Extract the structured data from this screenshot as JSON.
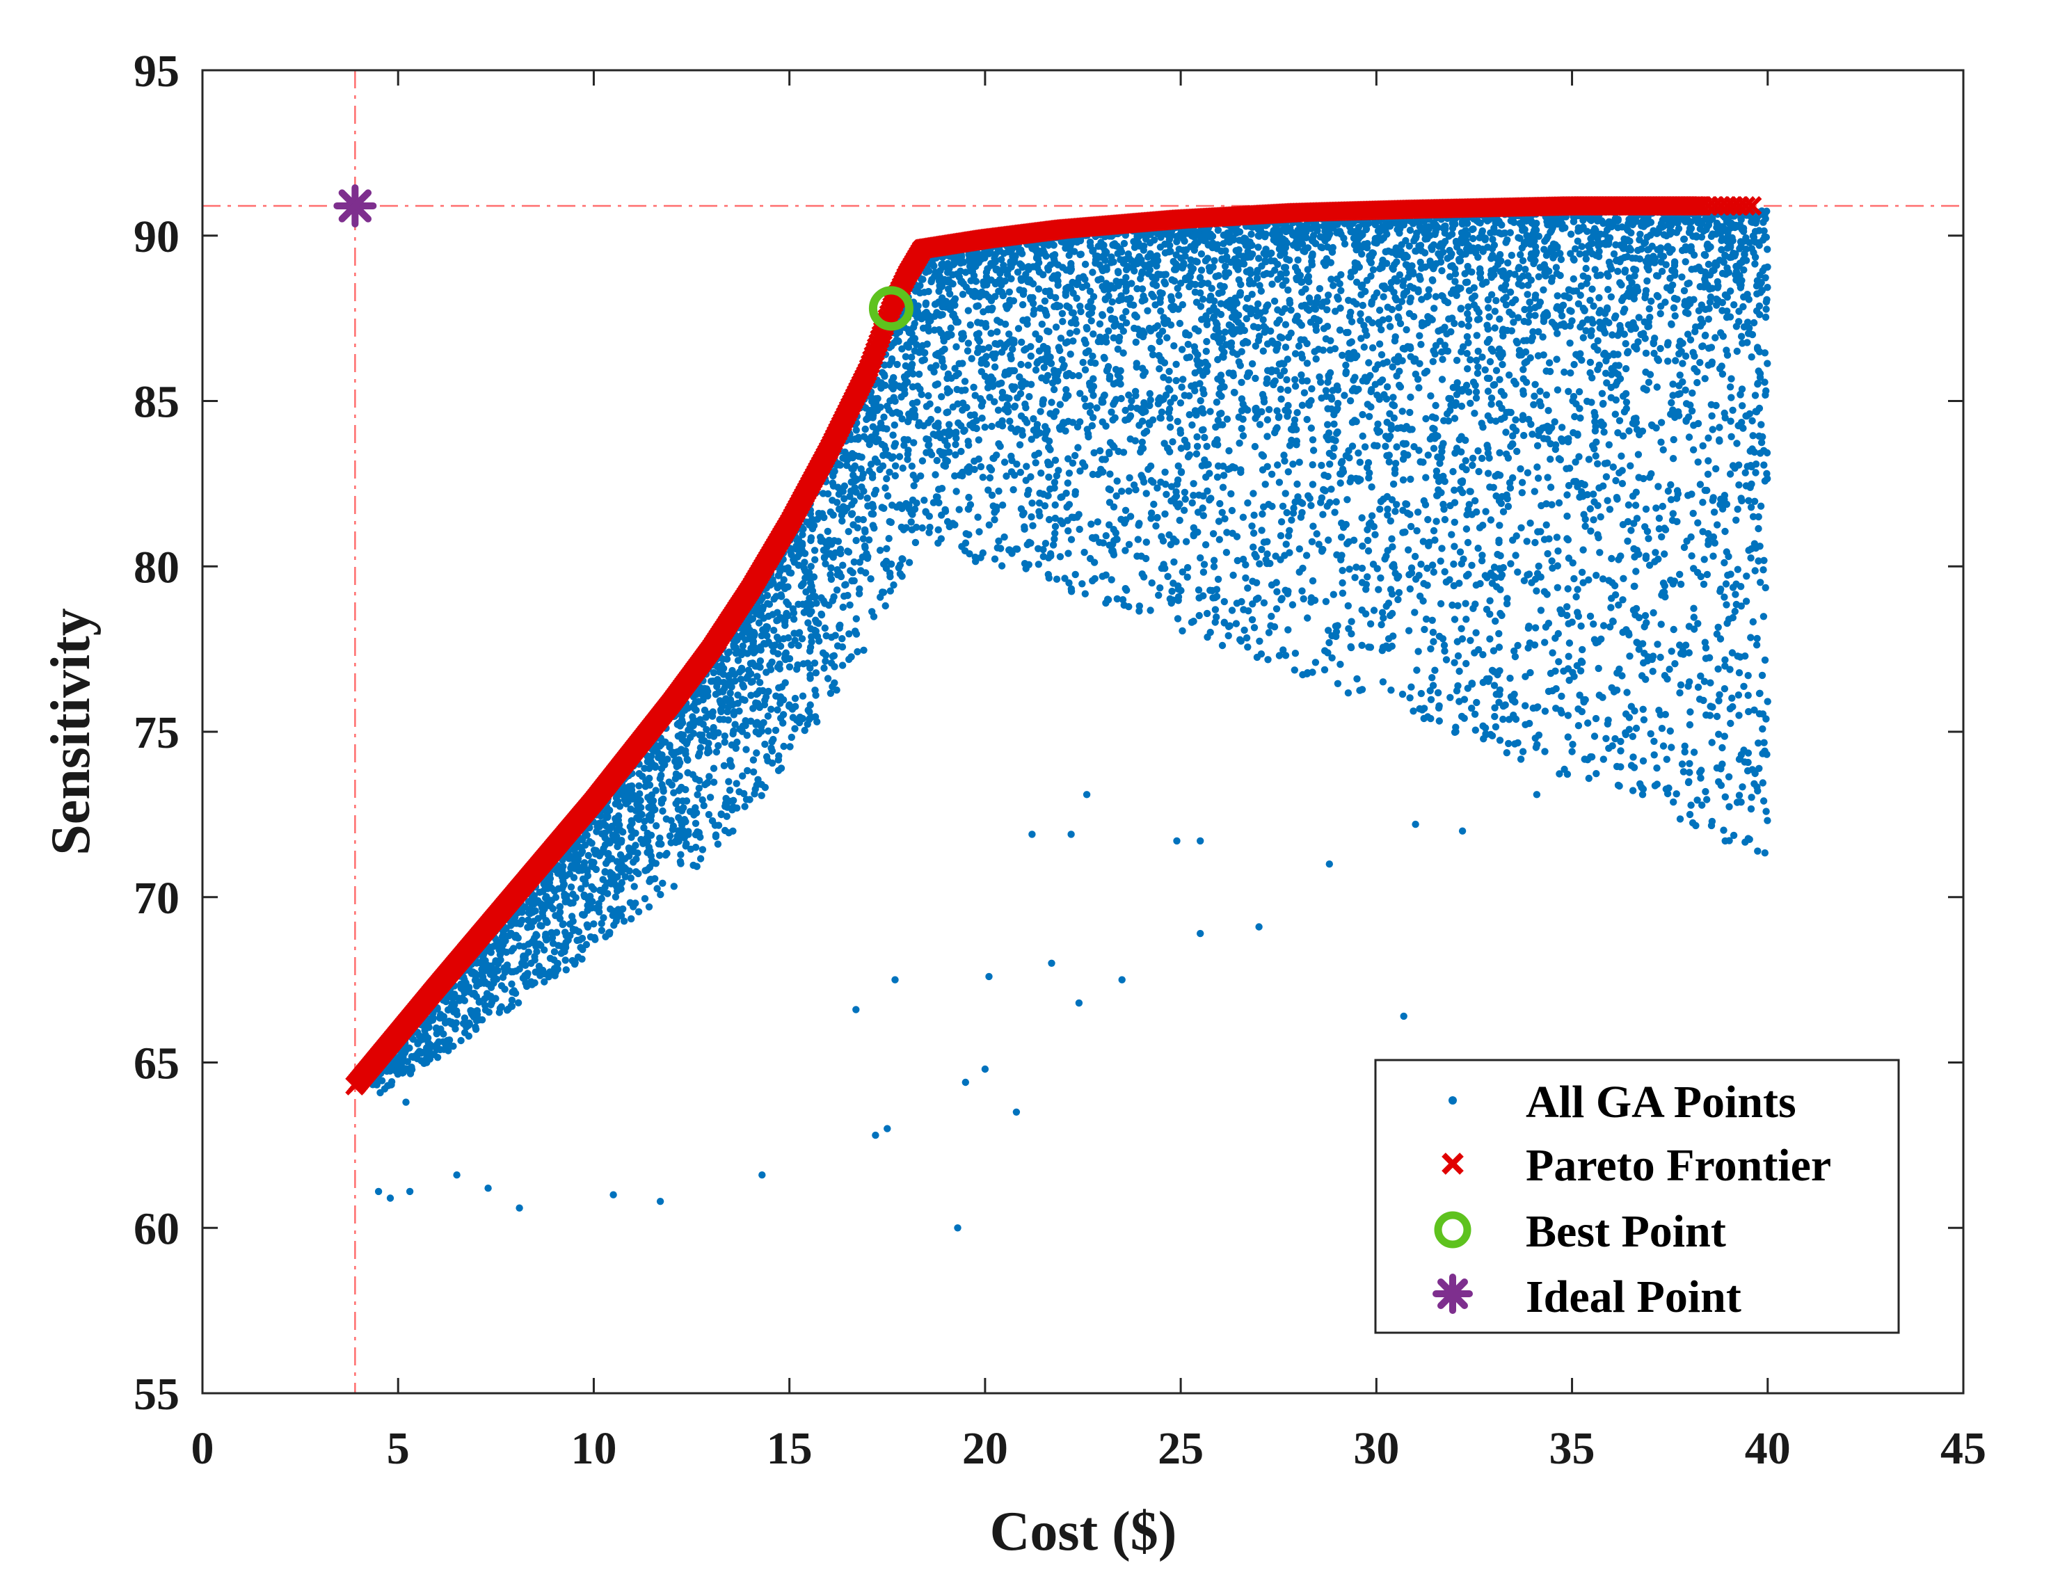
{
  "chart_data": {
    "type": "scatter",
    "title": "",
    "xlabel": "Cost ($)",
    "ylabel": "Sensitivity",
    "xlim": [
      0,
      45
    ],
    "ylim": [
      55,
      95
    ],
    "xticks": [
      0,
      5,
      10,
      15,
      20,
      25,
      30,
      35,
      40,
      45
    ],
    "yticks": [
      55,
      60,
      65,
      70,
      75,
      80,
      85,
      90,
      95
    ],
    "grid": false,
    "legend_position": "bottom-right",
    "colors": {
      "ga_points": "#0072BD",
      "pareto": "#E00000",
      "best": "#5EC21E",
      "ideal": "#7E2F8E",
      "reference_lines": "#FF6E6E"
    },
    "series": [
      {
        "name": "All GA Points",
        "marker": "dot",
        "description_sample": [
          [
            5.2,
            63.8
          ],
          [
            6.5,
            61.6
          ],
          [
            7.3,
            61.2
          ],
          [
            8.1,
            60.6
          ],
          [
            10.5,
            61.0
          ],
          [
            11.7,
            60.8
          ],
          [
            14.3,
            61.6
          ],
          [
            19.3,
            60.0
          ],
          [
            17.2,
            62.8
          ],
          [
            17.5,
            63.0
          ],
          [
            20.0,
            64.8
          ],
          [
            20.8,
            63.5
          ],
          [
            22.4,
            66.8
          ],
          [
            23.5,
            67.5
          ],
          [
            25.5,
            68.9
          ],
          [
            27.0,
            69.1
          ],
          [
            28.8,
            71.0
          ],
          [
            30.7,
            66.4
          ],
          [
            31.0,
            72.2
          ],
          [
            32.2,
            72.0
          ],
          [
            34.1,
            73.1
          ],
          [
            35.0,
            74.4
          ],
          [
            37.1,
            74.3
          ],
          [
            37.3,
            75.1
          ],
          [
            38.9,
            76.3
          ],
          [
            39.5,
            76.1
          ],
          [
            39.5,
            76.7
          ],
          [
            38.4,
            77.7
          ],
          [
            34.3,
            77.7
          ],
          [
            30.9,
            79.8
          ],
          [
            39.9,
            83.5
          ],
          [
            38.4,
            82.3
          ],
          [
            39.0,
            80.3
          ],
          [
            39.3,
            85.2
          ],
          [
            36.0,
            85.1
          ],
          [
            37.0,
            85.8
          ],
          [
            21.2,
            71.9
          ],
          [
            22.2,
            71.9
          ],
          [
            22.6,
            73.1
          ],
          [
            24.9,
            71.7
          ],
          [
            25.5,
            71.7
          ],
          [
            16.7,
            66.6
          ],
          [
            17.7,
            67.5
          ],
          [
            20.1,
            67.6
          ],
          [
            21.7,
            68.0
          ],
          [
            19.5,
            64.4
          ],
          [
            4.5,
            61.1
          ],
          [
            4.8,
            60.9
          ],
          [
            5.3,
            61.1
          ]
        ]
      },
      {
        "name": "Pareto Frontier",
        "marker": "x",
        "frontier": [
          [
            3.9,
            64.3
          ],
          [
            6.0,
            67.3
          ],
          [
            8.0,
            70.1
          ],
          [
            10.0,
            72.9
          ],
          [
            12.0,
            75.9
          ],
          [
            13.0,
            77.5
          ],
          [
            14.0,
            79.3
          ],
          [
            15.0,
            81.3
          ],
          [
            16.0,
            83.5
          ],
          [
            17.0,
            85.9
          ],
          [
            17.6,
            87.8
          ],
          [
            18.0,
            88.8
          ],
          [
            18.4,
            89.6
          ],
          [
            20.0,
            89.9
          ],
          [
            22.0,
            90.2
          ],
          [
            25.0,
            90.5
          ],
          [
            28.0,
            90.7
          ],
          [
            31.0,
            90.8
          ],
          [
            35.0,
            90.9
          ],
          [
            39.6,
            90.9
          ]
        ]
      },
      {
        "name": "Best Point",
        "marker": "circle",
        "x": 17.6,
        "y": 87.8
      },
      {
        "name": "Ideal Point",
        "marker": "asterisk",
        "x": 3.9,
        "y": 90.9
      }
    ],
    "reference_lines": {
      "vertical_x": 3.9,
      "horizontal_y": 90.9
    },
    "legend": [
      "All GA Points",
      "Pareto Frontier",
      "Best Point",
      "Ideal Point"
    ]
  }
}
